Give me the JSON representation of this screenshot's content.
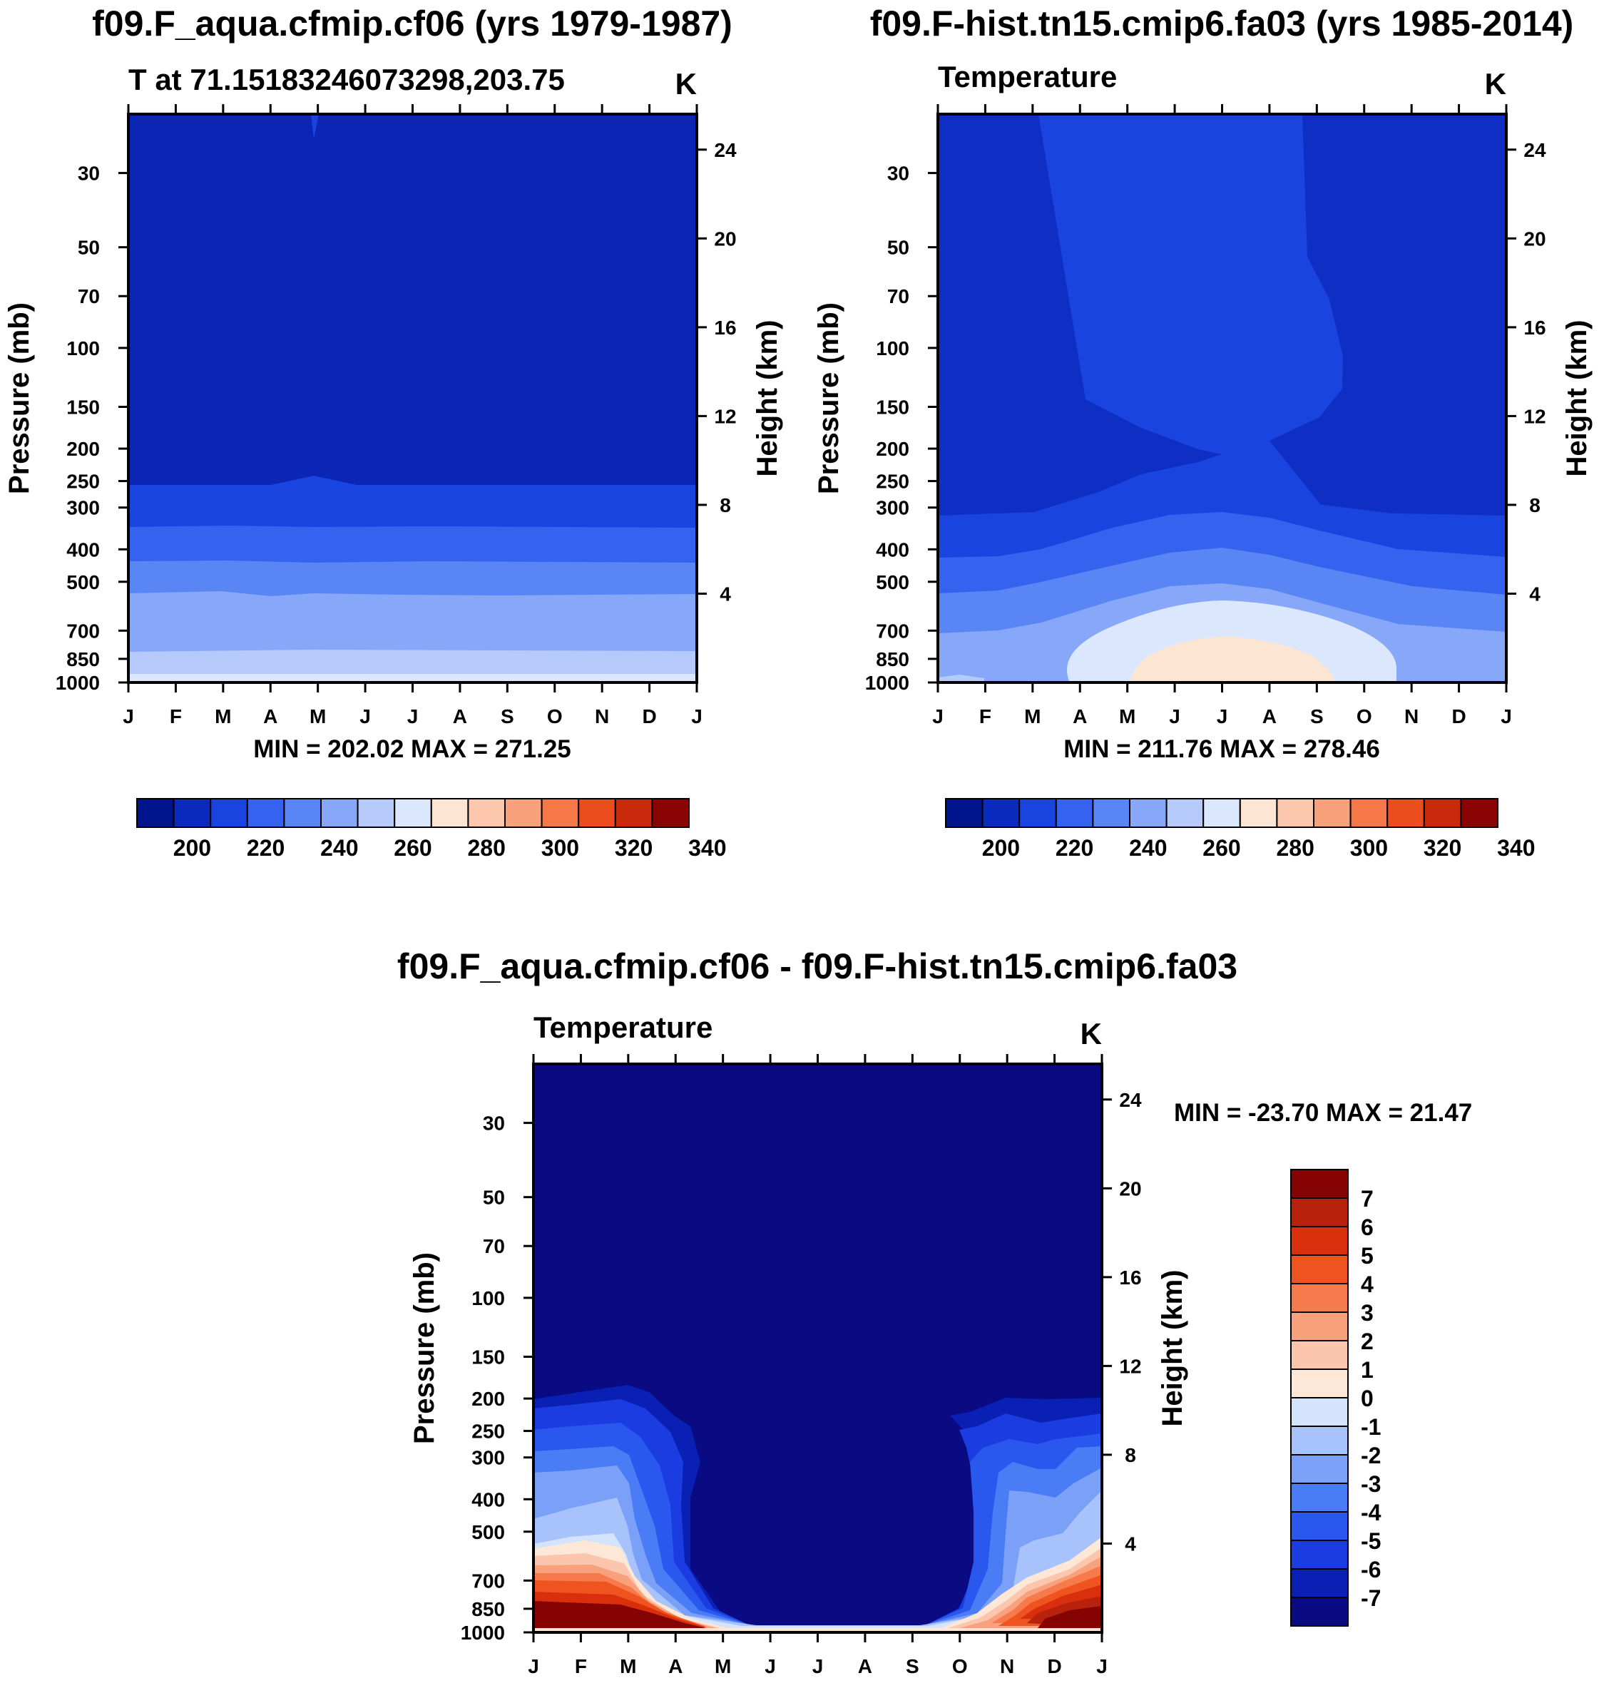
{
  "chart_data": [
    {
      "type": "contour",
      "title": "f09.F_aqua.cfmip.cf06 (yrs 1979-1987)",
      "subtitle": "T at 71.15183246073298,203.75",
      "units": "K",
      "ylabel": "Pressure (mb)",
      "y2label": "Height (km)",
      "months": [
        "J",
        "F",
        "M",
        "A",
        "M",
        "J",
        "J",
        "A",
        "S",
        "O",
        "N",
        "D",
        "J"
      ],
      "pressure_ticks": [
        "30",
        "50",
        "70",
        "100",
        "150",
        "200",
        "250",
        "300",
        "400",
        "500",
        "700",
        "850",
        "1000"
      ],
      "height_ticks": [
        "24",
        "20",
        "16",
        "12",
        "8",
        "4"
      ],
      "minmax_text": "MIN = 202.02 MAX = 271.25",
      "min": 202.02,
      "max": 271.25,
      "contour_interval": 10,
      "colorbar_labels": [
        "200",
        "220",
        "240",
        "260",
        "280",
        "300",
        "320",
        "340"
      ]
    },
    {
      "type": "contour",
      "title": "f09.F-hist.tn15.cmip6.fa03 (yrs 1985-2014)",
      "subtitle": "Temperature",
      "units": "K",
      "ylabel": "Pressure (mb)",
      "y2label": "Height (km)",
      "months": [
        "J",
        "F",
        "M",
        "A",
        "M",
        "J",
        "J",
        "A",
        "S",
        "O",
        "N",
        "D",
        "J"
      ],
      "pressure_ticks": [
        "30",
        "50",
        "70",
        "100",
        "150",
        "200",
        "250",
        "300",
        "400",
        "500",
        "700",
        "850",
        "1000"
      ],
      "height_ticks": [
        "24",
        "20",
        "16",
        "12",
        "8",
        "4"
      ],
      "minmax_text": "MIN = 211.76 MAX = 278.46",
      "min": 211.76,
      "max": 278.46,
      "contour_interval": 10,
      "colorbar_labels": [
        "200",
        "220",
        "240",
        "260",
        "280",
        "300",
        "320",
        "340"
      ]
    },
    {
      "type": "contour",
      "title": "f09.F_aqua.cfmip.cf06 - f09.F-hist.tn15.cmip6.fa03",
      "subtitle": "Temperature",
      "units": "K",
      "ylabel": "Pressure (mb)",
      "y2label": "Height (km)",
      "months": [
        "J",
        "F",
        "M",
        "A",
        "M",
        "J",
        "J",
        "A",
        "S",
        "O",
        "N",
        "D",
        "J"
      ],
      "pressure_ticks": [
        "30",
        "50",
        "70",
        "100",
        "150",
        "200",
        "250",
        "300",
        "400",
        "500",
        "700",
        "850",
        "1000"
      ],
      "height_ticks": [
        "24",
        "20",
        "16",
        "12",
        "8",
        "4"
      ],
      "minmax_text": "MIN = -23.70 MAX =  21.47",
      "min": -23.7,
      "max": 21.47,
      "contour_interval": 1,
      "colorbar_labels": [
        "7",
        "6",
        "5",
        "4",
        "3",
        "2",
        "1",
        "0",
        "-1",
        "-2",
        "-3",
        "-4",
        "-5",
        "-6",
        "-7"
      ]
    }
  ],
  "colormaps": {
    "absolute": [
      "#00148c",
      "#0a2bbe",
      "#1a44e0",
      "#3563ef",
      "#5a86f5",
      "#87a8f8",
      "#b5c9fb",
      "#dbe7fc",
      "#fde5d4",
      "#fcc7ad",
      "#f9a07c",
      "#f67848",
      "#ec4d1f",
      "#c92a0c",
      "#8a0404"
    ],
    "difference": [
      "#0a0a82",
      "#0a20b4",
      "#1a3ce0",
      "#2a58ef",
      "#4a7cf5",
      "#7aa0f8",
      "#a8c2fb",
      "#d4e4fc",
      "#fde7d6",
      "#fcc5ad",
      "#f9a07c",
      "#f67a4b",
      "#ef5320",
      "#d92f0d",
      "#b8210b",
      "#860303"
    ]
  }
}
